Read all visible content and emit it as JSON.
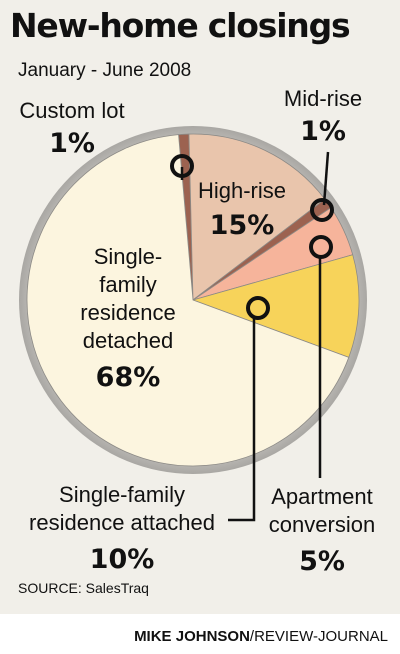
{
  "chart_data": {
    "type": "pie",
    "title": "New-home closings",
    "subtitle": "January - June 2008",
    "slices": [
      {
        "name": "Custom lot",
        "value": 1,
        "label": "1%",
        "color": "#9c6250"
      },
      {
        "name": "High-rise",
        "value": 15,
        "label": "15%",
        "color": "#e9c5ac"
      },
      {
        "name": "Mid-rise",
        "value": 1,
        "label": "1%",
        "color": "#9c6250"
      },
      {
        "name": "Apartment conversion",
        "value": 5,
        "label": "5%",
        "color": "#f6b49b"
      },
      {
        "name": "Single-family residence attached",
        "value": 10,
        "label": "10%",
        "color": "#f7d35a"
      },
      {
        "name": "Single-family residence detached",
        "value": 68,
        "label": "68%",
        "color": "#fcf5df"
      }
    ]
  },
  "labels": {
    "custom_lot": {
      "name": "Custom lot",
      "value": "1%"
    },
    "mid_rise": {
      "name": "Mid-rise",
      "value": "1%"
    },
    "high_rise": {
      "name": "High-rise",
      "value": "15%"
    },
    "sfr_detached": {
      "lines": [
        "Single-",
        "family",
        "residence",
        "detached"
      ],
      "value": "68%"
    },
    "sfr_attached": {
      "lines": [
        "Single-family",
        "residence attached"
      ],
      "value": "10%"
    },
    "apt_conversion": {
      "lines": [
        "Apartment",
        "conversion"
      ],
      "value": "5%"
    }
  },
  "source": "SOURCE: SalesTraq",
  "credit": {
    "author": "MIKE JOHNSON",
    "outlet": "/REVIEW-JOURNAL"
  }
}
